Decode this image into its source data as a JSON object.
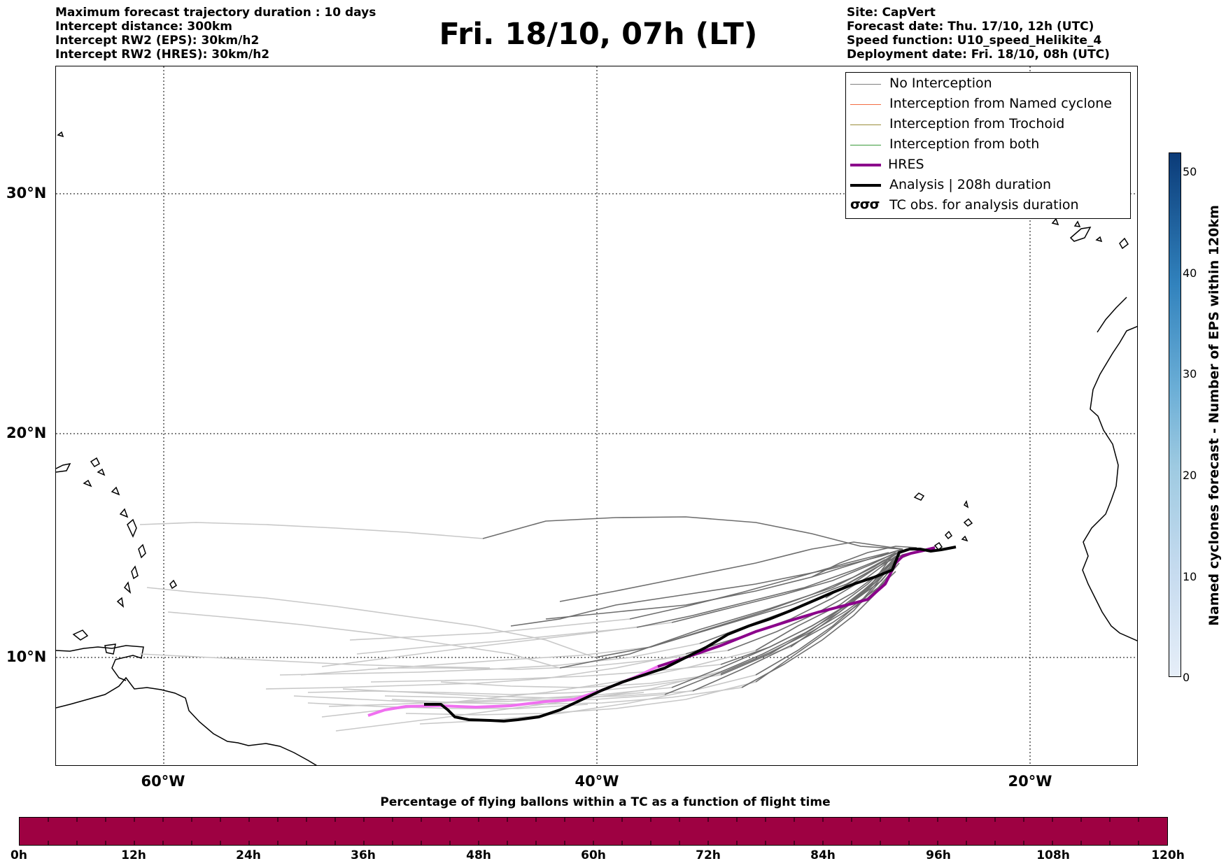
{
  "header": {
    "left_lines": [
      "Maximum forecast trajectory duration : 10 days",
      "Intercept distance: 300km",
      "Intercept RW2 (EPS):  30km/h2",
      "Intercept RW2 (HRES): 30km/h2"
    ],
    "title": "Fri. 18/10, 07h (LT)",
    "right_lines": [
      "Site: CapVert",
      "Forecast date: Thu. 17/10, 12h (UTC)",
      "Speed function: U10_speed_Helikite_4",
      "Deployment date: Fri. 18/10, 08h (UTC)"
    ]
  },
  "map": {
    "lat_labels": [
      "30°N",
      "20°N",
      "10°N"
    ],
    "lon_labels": [
      "60°W",
      "40°W",
      "20°W"
    ],
    "colors": {
      "no_interception": "#808080",
      "eps_early": "#c8c8c8",
      "eps_late": "#6e6e6e",
      "hres_early": "#f070f0",
      "hres_late": "#8b008b",
      "analysis": "#000000",
      "coastline": "#000000"
    }
  },
  "legend": {
    "items": [
      {
        "label": "No Interception",
        "color": "#808080"
      },
      {
        "label": "Interception from Named cyclone",
        "color": "#f46d43"
      },
      {
        "label": "Interception from Trochoid",
        "color": "#9a8c3a"
      },
      {
        "label": "Interception from both",
        "color": "#3a9a3a"
      },
      {
        "label": "HRES",
        "color": "#8b008b"
      },
      {
        "label": "Analysis | 208h duration",
        "color": "#000000"
      },
      {
        "label": "TC obs. for analysis duration",
        "color": "#000000",
        "icon": "cyclone-symbols-icon",
        "glyph": "σσσ"
      }
    ]
  },
  "colorbar_vertical": {
    "title": "Named cyclones forecast - Number of EPS within 120km",
    "ticks": [
      "50",
      "40",
      "30",
      "20",
      "10",
      "0"
    ],
    "color_low": "#e6eef8",
    "color_high": "#0b3b78"
  },
  "colorbar_horizontal": {
    "title": "Percentage of flying ballons within a TC as a function of flight time",
    "ticks": [
      "0h",
      "12h",
      "24h",
      "36h",
      "48h",
      "60h",
      "72h",
      "84h",
      "96h",
      "108h",
      "120h"
    ],
    "color": "#9e0142"
  }
}
